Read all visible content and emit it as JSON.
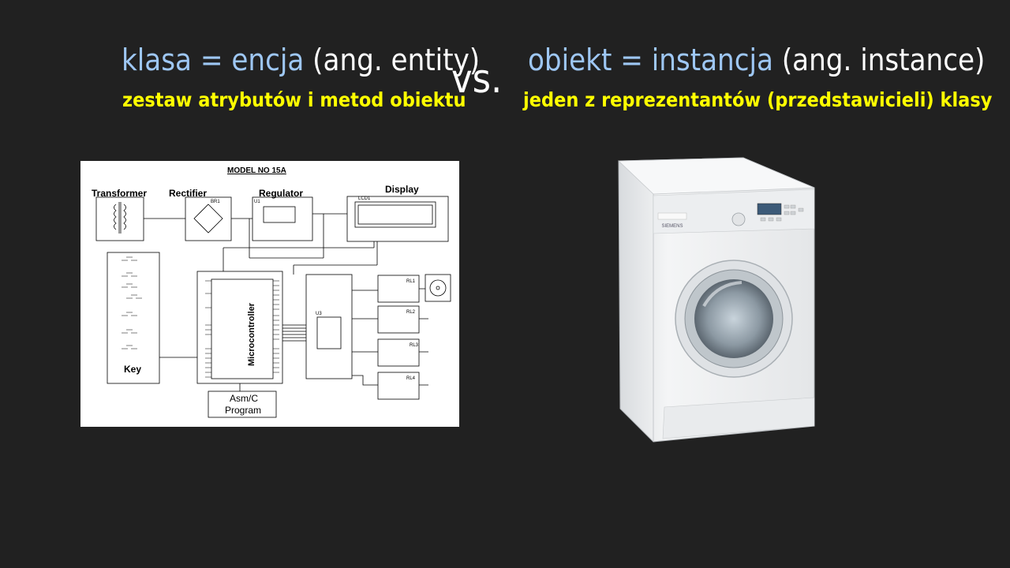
{
  "left": {
    "title_highlight": "klasa = encja",
    "title_rest": " (ang. entity)",
    "subtitle": "zestaw atrybutów i metod obiektu"
  },
  "vs": "vs.",
  "right": {
    "title_highlight": "obiekt = instancja",
    "title_rest": " (ang. instance)",
    "subtitle": "jeden z reprezentantów (przedstawicieli) klasy"
  },
  "diagram": {
    "model": "MODEL NO 15A",
    "transformer": "Transformer",
    "rectifier": "Rectifier",
    "regulator": "Regulator",
    "display": "Display",
    "key": "Key",
    "microcontroller": "Microcontroller",
    "program_line1": "Asm/C",
    "program_line2": "Program",
    "relays": [
      "RL1",
      "RL2",
      "RL3",
      "RL4"
    ],
    "br": "BR1",
    "u1": "U1",
    "u3": "U3",
    "lcd": "LCD1"
  },
  "washer": {
    "brand": "SIEMENS"
  },
  "colors": {
    "background": "#212121",
    "highlight": "#9ec7f4",
    "subtitle": "#ffff00",
    "text": "#ffffff"
  }
}
